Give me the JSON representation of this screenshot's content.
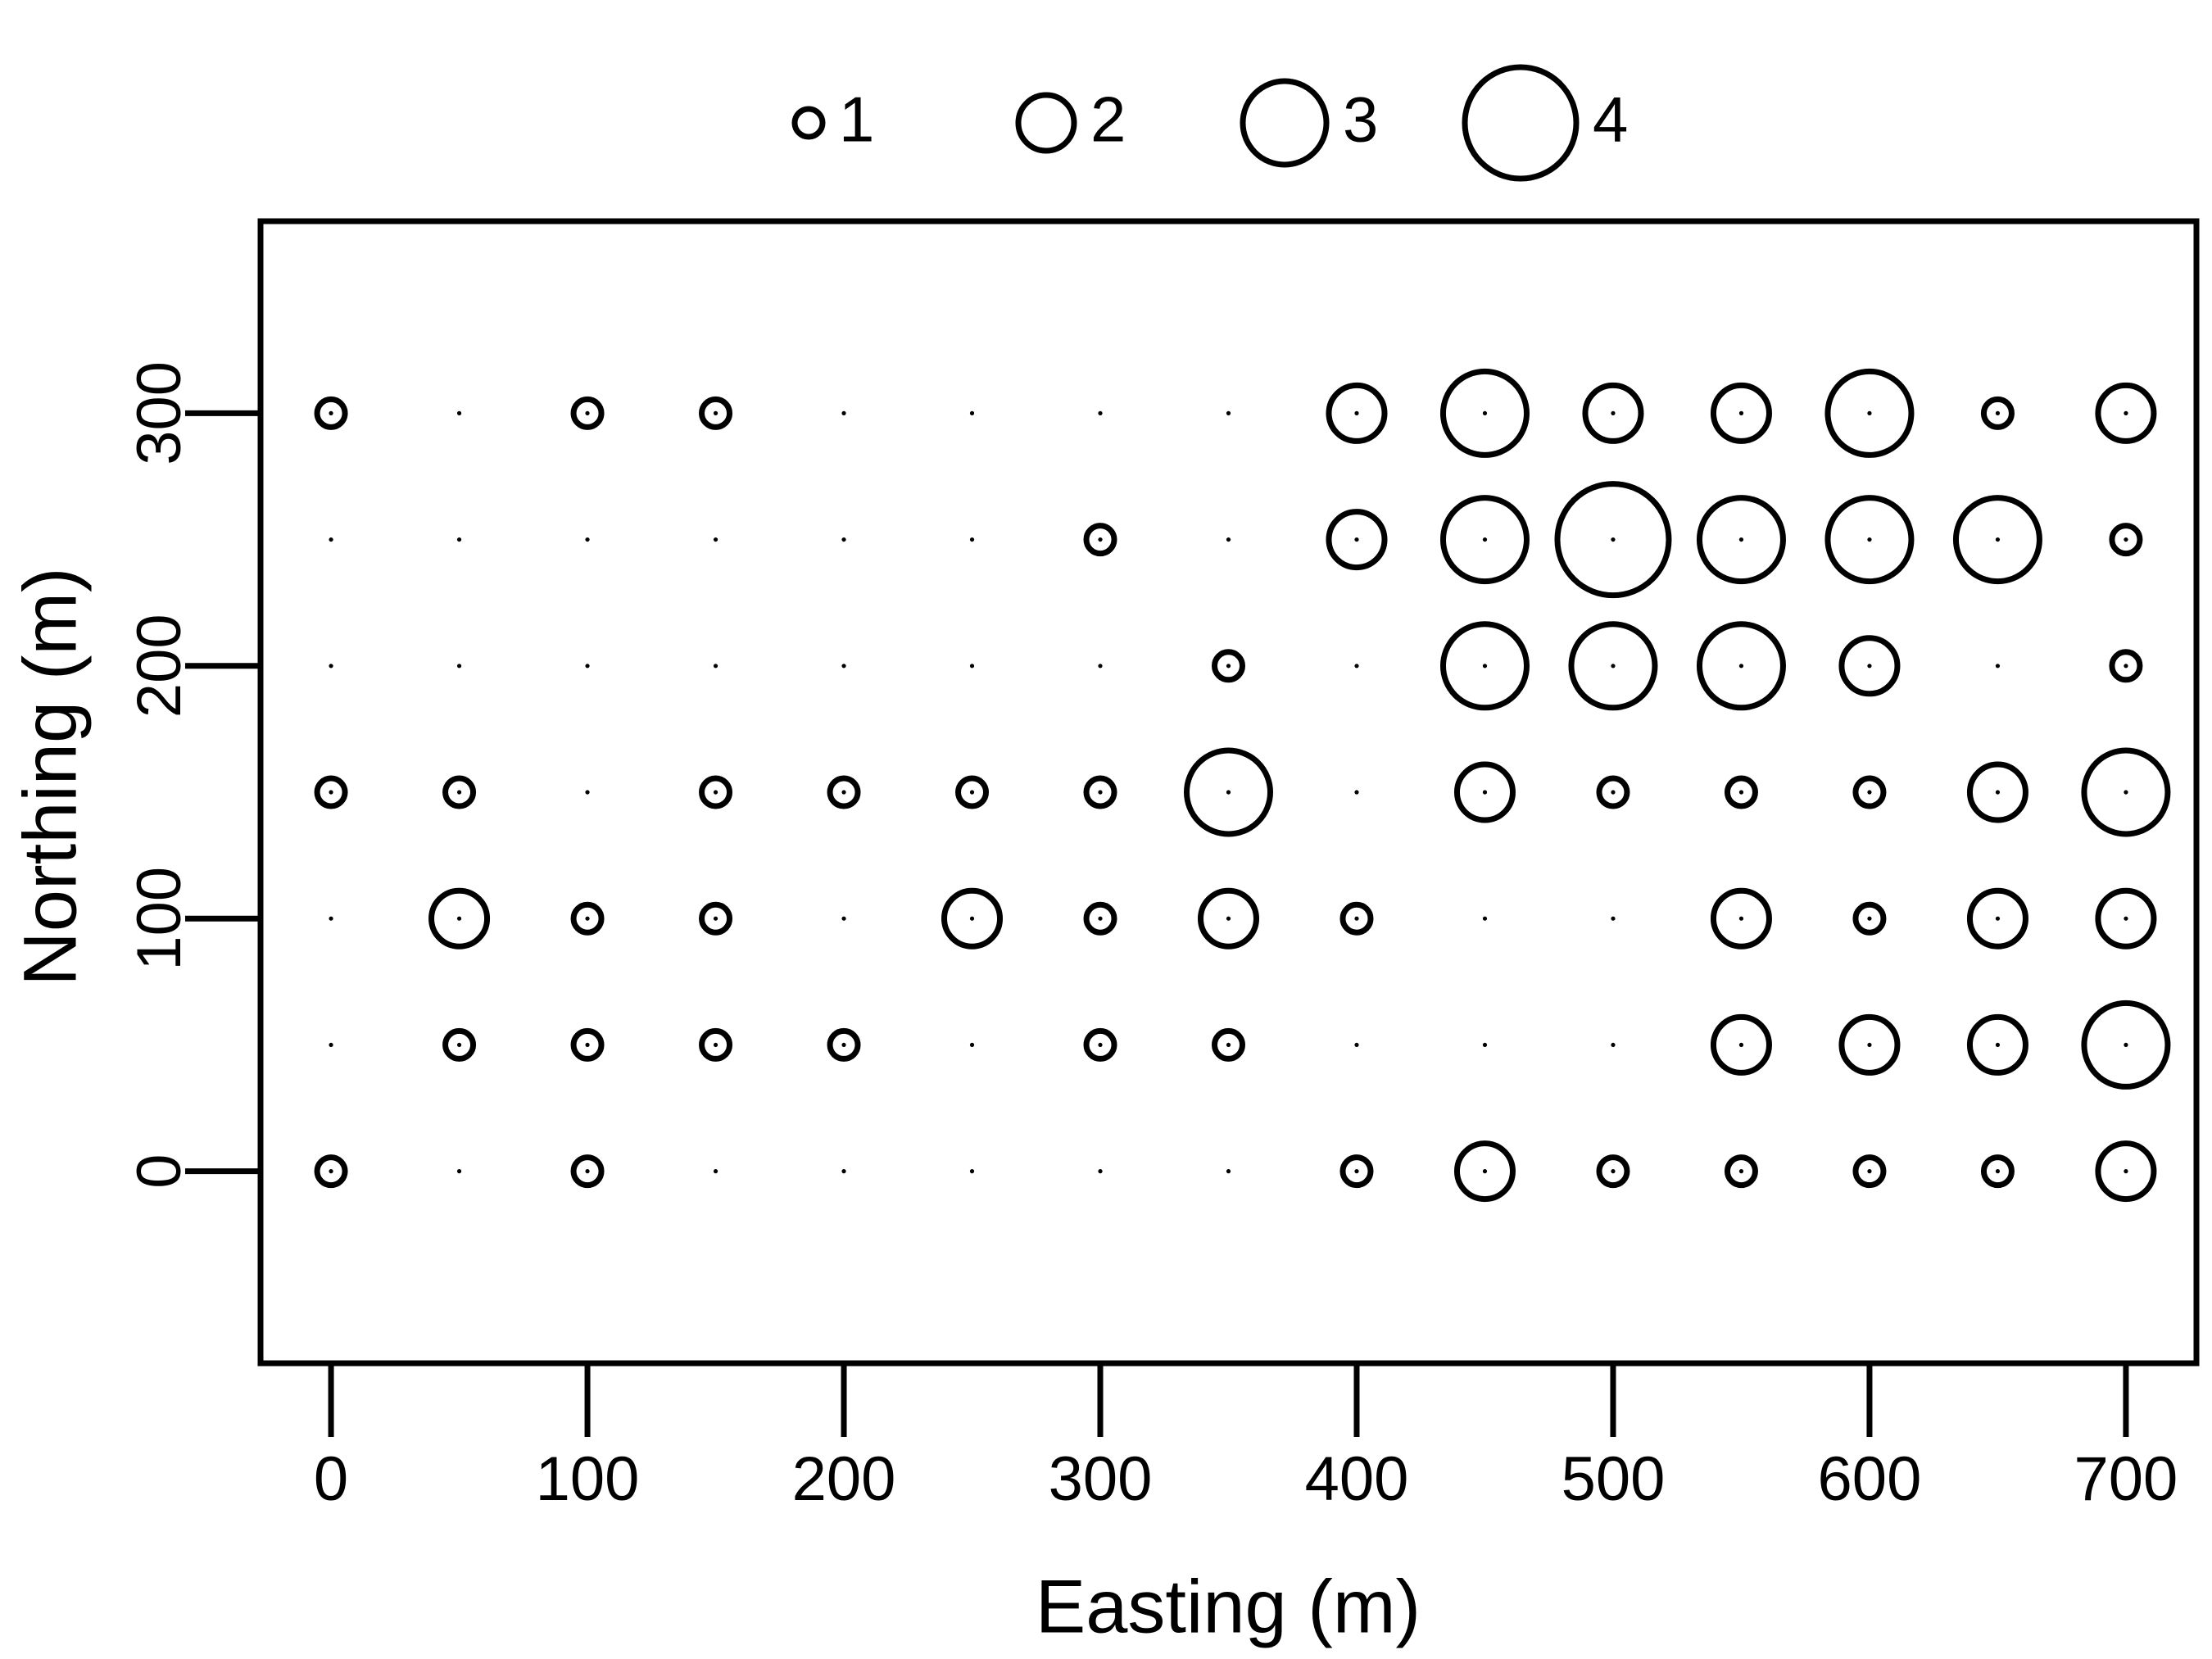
{
  "chart_data": {
    "type": "bubble",
    "x_label": "Easting (m)",
    "y_label": "Northing (m)",
    "legend_sizes": [
      1,
      2,
      3,
      4
    ],
    "x": [
      0,
      50,
      100,
      150,
      200,
      250,
      300,
      350,
      400,
      450,
      500,
      550,
      600,
      650,
      700,
      0,
      50,
      100,
      150,
      200,
      250,
      300,
      350,
      400,
      450,
      500,
      550,
      600,
      650,
      700,
      0,
      50,
      100,
      150,
      200,
      250,
      300,
      350,
      400,
      450,
      500,
      550,
      600,
      650,
      700,
      0,
      50,
      100,
      150,
      200,
      250,
      300,
      350,
      400,
      450,
      500,
      550,
      600,
      650,
      700,
      0,
      50,
      100,
      150,
      200,
      250,
      300,
      350,
      400,
      450,
      500,
      550,
      600,
      650,
      700,
      0,
      50,
      100,
      150,
      200,
      250,
      300,
      350,
      400,
      450,
      500,
      550,
      600,
      650,
      700,
      0,
      50,
      100,
      150,
      200,
      250,
      300,
      350,
      400,
      450,
      500,
      550,
      600,
      650,
      700
    ],
    "y": [
      300,
      300,
      300,
      300,
      300,
      300,
      300,
      300,
      300,
      300,
      300,
      300,
      300,
      300,
      300,
      250,
      250,
      250,
      250,
      250,
      250,
      250,
      250,
      250,
      250,
      250,
      250,
      250,
      250,
      250,
      200,
      200,
      200,
      200,
      200,
      200,
      200,
      200,
      200,
      200,
      200,
      200,
      200,
      200,
      200,
      150,
      150,
      150,
      150,
      150,
      150,
      150,
      150,
      150,
      150,
      150,
      150,
      150,
      150,
      150,
      100,
      100,
      100,
      100,
      100,
      100,
      100,
      100,
      100,
      100,
      100,
      100,
      100,
      100,
      100,
      50,
      50,
      50,
      50,
      50,
      50,
      50,
      50,
      50,
      50,
      50,
      50,
      50,
      50,
      50,
      0,
      0,
      0,
      0,
      0,
      0,
      0,
      0,
      0,
      0,
      0,
      0,
      0,
      0,
      0
    ],
    "sizes": [
      1,
      0,
      1,
      1,
      0,
      0,
      0,
      0,
      2,
      3,
      2,
      2,
      3,
      1,
      2,
      0,
      0,
      0,
      0,
      0,
      0,
      1,
      0,
      2,
      3,
      4,
      3,
      3,
      3,
      1,
      0,
      0,
      0,
      0,
      0,
      0,
      0,
      1,
      0,
      3,
      3,
      3,
      2,
      0,
      1,
      1,
      1,
      0,
      1,
      1,
      1,
      1,
      3,
      0,
      2,
      1,
      1,
      1,
      2,
      3,
      0,
      2,
      1,
      1,
      0,
      2,
      1,
      2,
      1,
      0,
      0,
      2,
      1,
      2,
      2,
      0,
      1,
      1,
      1,
      1,
      0,
      1,
      1,
      0,
      0,
      0,
      2,
      2,
      2,
      3,
      1,
      0,
      1,
      0,
      0,
      0,
      0,
      0,
      1,
      2,
      1,
      1,
      1,
      1,
      2
    ],
    "color": "#000000",
    "xlim": [
      -27.5,
      727.5
    ],
    "ylim": [
      -76,
      376
    ],
    "xticks": [
      0,
      100,
      200,
      300,
      400,
      500,
      600,
      700
    ],
    "yticks": [
      0,
      100,
      200,
      300
    ]
  }
}
